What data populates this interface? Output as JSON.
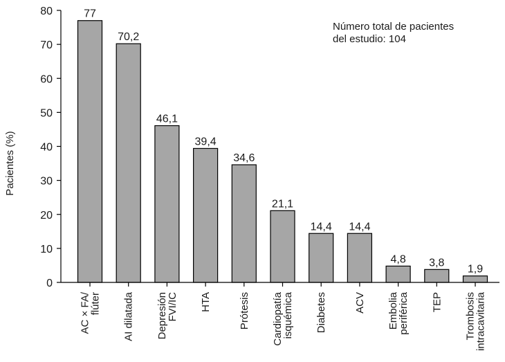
{
  "chart_data": {
    "type": "bar",
    "categories": [
      [
        "AC × FA/",
        "flúter"
      ],
      [
        "AI dilatada"
      ],
      [
        "Depresión",
        "FVI/IC"
      ],
      [
        "HTA"
      ],
      [
        "Prótesis"
      ],
      [
        "Cardiopatía",
        "isquémica"
      ],
      [
        "Diabetes"
      ],
      [
        "ACV"
      ],
      [
        "Embolia",
        "periférica"
      ],
      [
        "TEP"
      ],
      [
        "Trombosis",
        "intracavitaria"
      ]
    ],
    "values": [
      77,
      70.2,
      46.1,
      39.4,
      34.6,
      21.1,
      14.4,
      14.4,
      4.8,
      3.8,
      1.9
    ],
    "value_labels": [
      "77",
      "70,2",
      "46,1",
      "39,4",
      "34,6",
      "21,1",
      "14,4",
      "14,4",
      "4,8",
      "3,8",
      "1,9"
    ],
    "ylabel": "Pacientes (%)",
    "ylim": [
      0,
      80
    ],
    "yticks": [
      0,
      10,
      20,
      30,
      40,
      50,
      60,
      70,
      80
    ],
    "bar_color": "#a6a6a6",
    "grid": false,
    "note_lines": [
      "Número total de pacientes",
      "del estudio: 104"
    ]
  }
}
